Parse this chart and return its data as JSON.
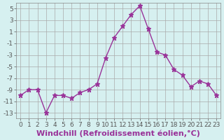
{
  "x": [
    0,
    1,
    2,
    3,
    4,
    5,
    6,
    7,
    8,
    9,
    10,
    11,
    12,
    13,
    14,
    15,
    16,
    17,
    18,
    19,
    20,
    21,
    22,
    23
  ],
  "y": [
    -10,
    -9,
    -9,
    -13,
    -10,
    -10,
    -10.5,
    -9.5,
    -9,
    -8,
    -3.5,
    0,
    2,
    4,
    5.5,
    1.5,
    -2.5,
    -3,
    -5.5,
    -6.5,
    -8.5,
    -7.5,
    -8,
    -10
  ],
  "line_color": "#993399",
  "marker": "*",
  "marker_size": 5,
  "bg_color": "#d6f0f0",
  "grid_color": "#aaaaaa",
  "xlabel": "Windchill (Refroidissement éolien,°C)",
  "xlabel_fontsize": 8,
  "xlim": [
    -0.5,
    23.5
  ],
  "ylim": [
    -14,
    6
  ],
  "yticks": [
    -13,
    -11,
    -9,
    -7,
    -5,
    -3,
    -1,
    1,
    3,
    5
  ],
  "xticks": [
    0,
    1,
    2,
    3,
    4,
    5,
    6,
    7,
    8,
    9,
    10,
    11,
    12,
    13,
    14,
    15,
    16,
    17,
    18,
    19,
    20,
    21,
    22,
    23
  ],
  "tick_fontsize": 6.5
}
